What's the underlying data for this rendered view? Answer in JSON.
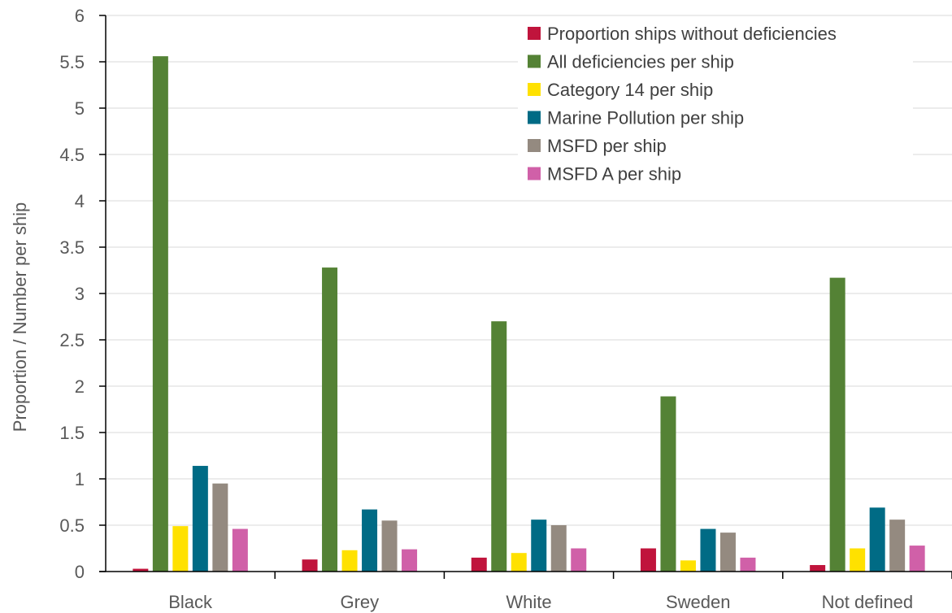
{
  "chart_data": {
    "type": "bar",
    "title": "",
    "xlabel": "",
    "ylabel": "Proportion / Number per ship",
    "ylim": [
      0,
      6
    ],
    "y_ticks": [
      "0",
      "0.5",
      "1",
      "1.5",
      "2",
      "2.5",
      "3",
      "3.5",
      "4",
      "4.5",
      "5",
      "5.5",
      "6"
    ],
    "grid": true,
    "legend_position": "top-right",
    "categories": [
      "Black",
      "Grey",
      "White",
      "Sweden",
      "Not defined"
    ],
    "series": [
      {
        "name": "Proportion ships without deficiencies",
        "color": "#C0143C",
        "values": [
          0.03,
          0.13,
          0.15,
          0.25,
          0.07
        ]
      },
      {
        "name": "All deficiencies per ship",
        "color": "#548235",
        "values": [
          5.56,
          3.28,
          2.7,
          1.89,
          3.17
        ]
      },
      {
        "name": "Category 14 per ship",
        "color": "#FFE100",
        "values": [
          0.49,
          0.23,
          0.2,
          0.12,
          0.25
        ]
      },
      {
        "name": "Marine Pollution per ship",
        "color": "#006B85",
        "values": [
          1.14,
          0.67,
          0.56,
          0.46,
          0.69
        ]
      },
      {
        "name": "MSFD per ship",
        "color": "#948A80",
        "values": [
          0.95,
          0.55,
          0.5,
          0.42,
          0.56
        ]
      },
      {
        "name": "MSFD A per ship",
        "color": "#D060A8",
        "values": [
          0.46,
          0.24,
          0.25,
          0.15,
          0.28
        ]
      }
    ]
  }
}
